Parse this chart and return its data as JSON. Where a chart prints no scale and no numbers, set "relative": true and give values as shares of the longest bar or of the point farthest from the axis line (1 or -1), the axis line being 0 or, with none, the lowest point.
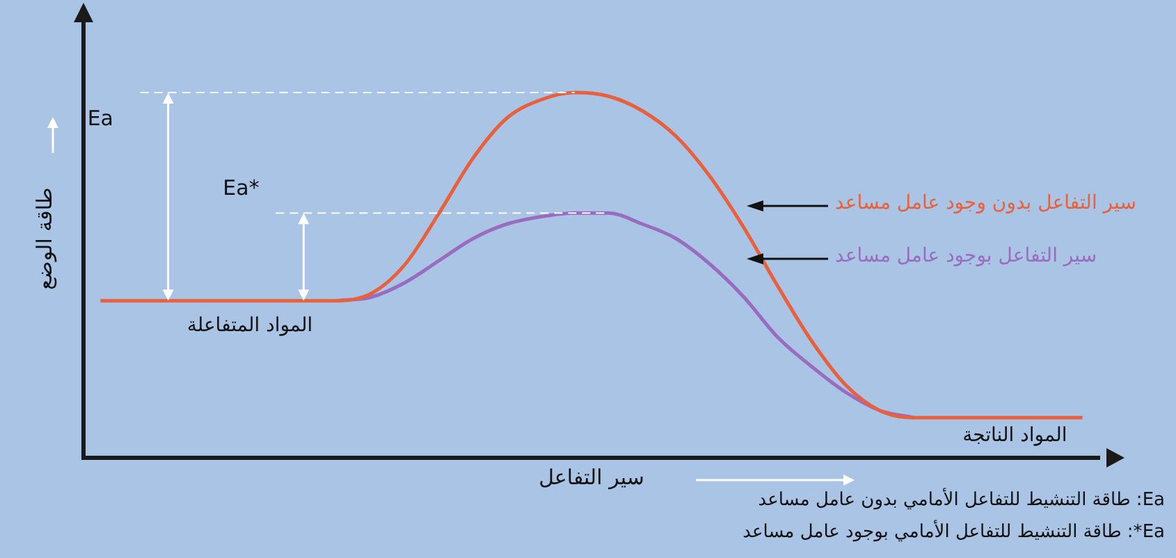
{
  "chart_data": {
    "type": "line",
    "relative": true,
    "xlabel": "سير التفاعل",
    "ylabel": "طاقة الوضع",
    "categories": [
      null,
      null,
      null,
      null,
      null,
      null,
      null,
      null,
      null,
      null,
      null,
      null,
      null,
      null,
      null,
      null,
      null,
      null,
      null,
      null,
      null,
      null,
      null,
      null,
      null,
      null,
      null,
      null,
      null,
      null
    ],
    "series": [
      {
        "name": "سير التفاعل بدون وجود عامل مساعد",
        "color": "#e8603c",
        "values": [
          0.43,
          0.43,
          0.43,
          0.43,
          0.43,
          0.43,
          0.43,
          0.43,
          0.45,
          0.53,
          0.67,
          0.82,
          0.93,
          0.98,
          1,
          0.99,
          0.95,
          0.88,
          0.77,
          0.63,
          0.47,
          0.32,
          0.2,
          0.13,
          0.11,
          0.11,
          0.11,
          0.11,
          0.11,
          0.11
        ]
      },
      {
        "name": "سير التفاعل بوجود عامل مساعد",
        "color": "#9a6cc0",
        "values": [
          null,
          null,
          null,
          null,
          null,
          null,
          null,
          0.43,
          0.44,
          0.48,
          0.54,
          0.6,
          0.64,
          0.66,
          0.67,
          0.67,
          0.64,
          0.6,
          0.53,
          0.44,
          0.33,
          0.25,
          0.18,
          0.13,
          0.11,
          null,
          null,
          null,
          null,
          null
        ]
      }
    ],
    "ref_lines": [
      {
        "axis": "y",
        "value": 1,
        "color": "#ffffff",
        "line_style": "dashed"
      },
      {
        "axis": "y",
        "value": 0.67,
        "color": "#ffffff",
        "line_style": "dashed"
      }
    ],
    "annotations": [
      "Ea",
      "Ea*",
      "المواد المتفاعلة",
      "المواد الناتجة",
      "Ea: طاقة التنشيط للتفاعل الأمامي بدون عامل مساعد",
      "Ea*: طاقة التنشيط للتفاعل الأمامي بوجود عامل مساعد"
    ],
    "legend": false,
    "grid": false,
    "marker": "none",
    "line_style": "solid"
  }
}
